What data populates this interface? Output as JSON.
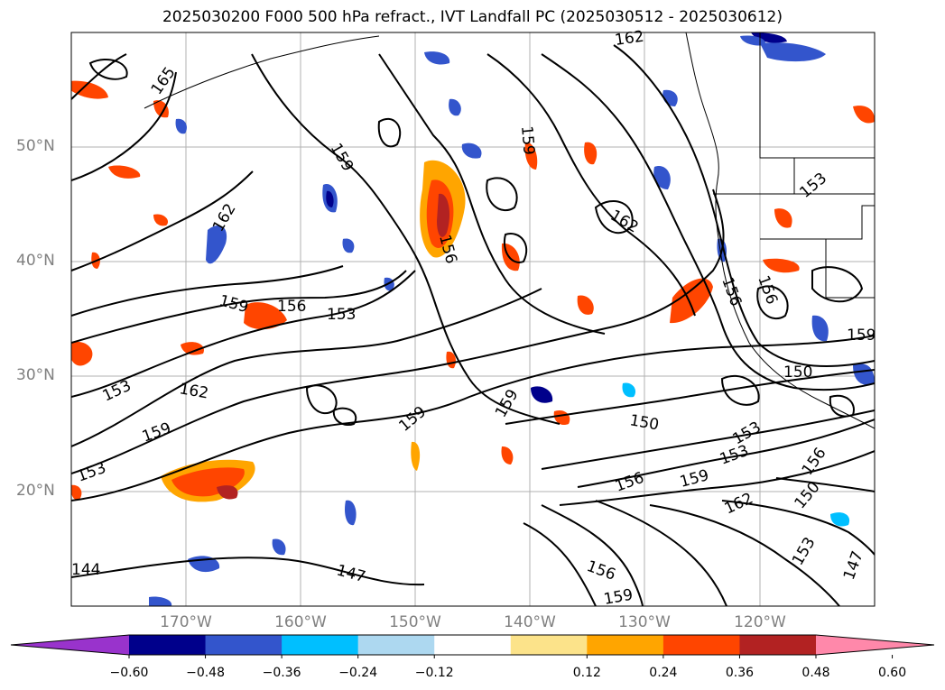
{
  "title": "2025030200 F000 500 hPa refract., IVT Landfall PC (2025030512 - 2025030612)",
  "lat_labels": [
    "50°N",
    "40°N",
    "30°N",
    "20°N"
  ],
  "lon_labels": [
    "170°W",
    "160°W",
    "150°W",
    "140°W",
    "130°W",
    "120°W"
  ],
  "contour_labels": [
    "162",
    "165",
    "159",
    "159",
    "162",
    "159",
    "156",
    "153",
    "156",
    "162",
    "153",
    "159",
    "159",
    "156",
    "159",
    "150",
    "150",
    "153",
    "153",
    "156",
    "162",
    "159",
    "159",
    "150",
    "162",
    "156",
    "153",
    "147",
    "147",
    "144",
    "156",
    "156",
    "153",
    "159",
    "153"
  ],
  "colorbar": {
    "ticks": [
      "−0.60",
      "−0.48",
      "−0.36",
      "−0.24",
      "−0.12",
      "0.12",
      "0.24",
      "0.36",
      "0.48",
      "0.60"
    ],
    "colors": [
      "#9933cc",
      "#00008b",
      "#3355cc",
      "#00bfff",
      "#add8f0",
      "#ffffff",
      "#fce38a",
      "#ffa500",
      "#ff4500",
      "#b22222",
      "#ff88aa"
    ]
  }
}
